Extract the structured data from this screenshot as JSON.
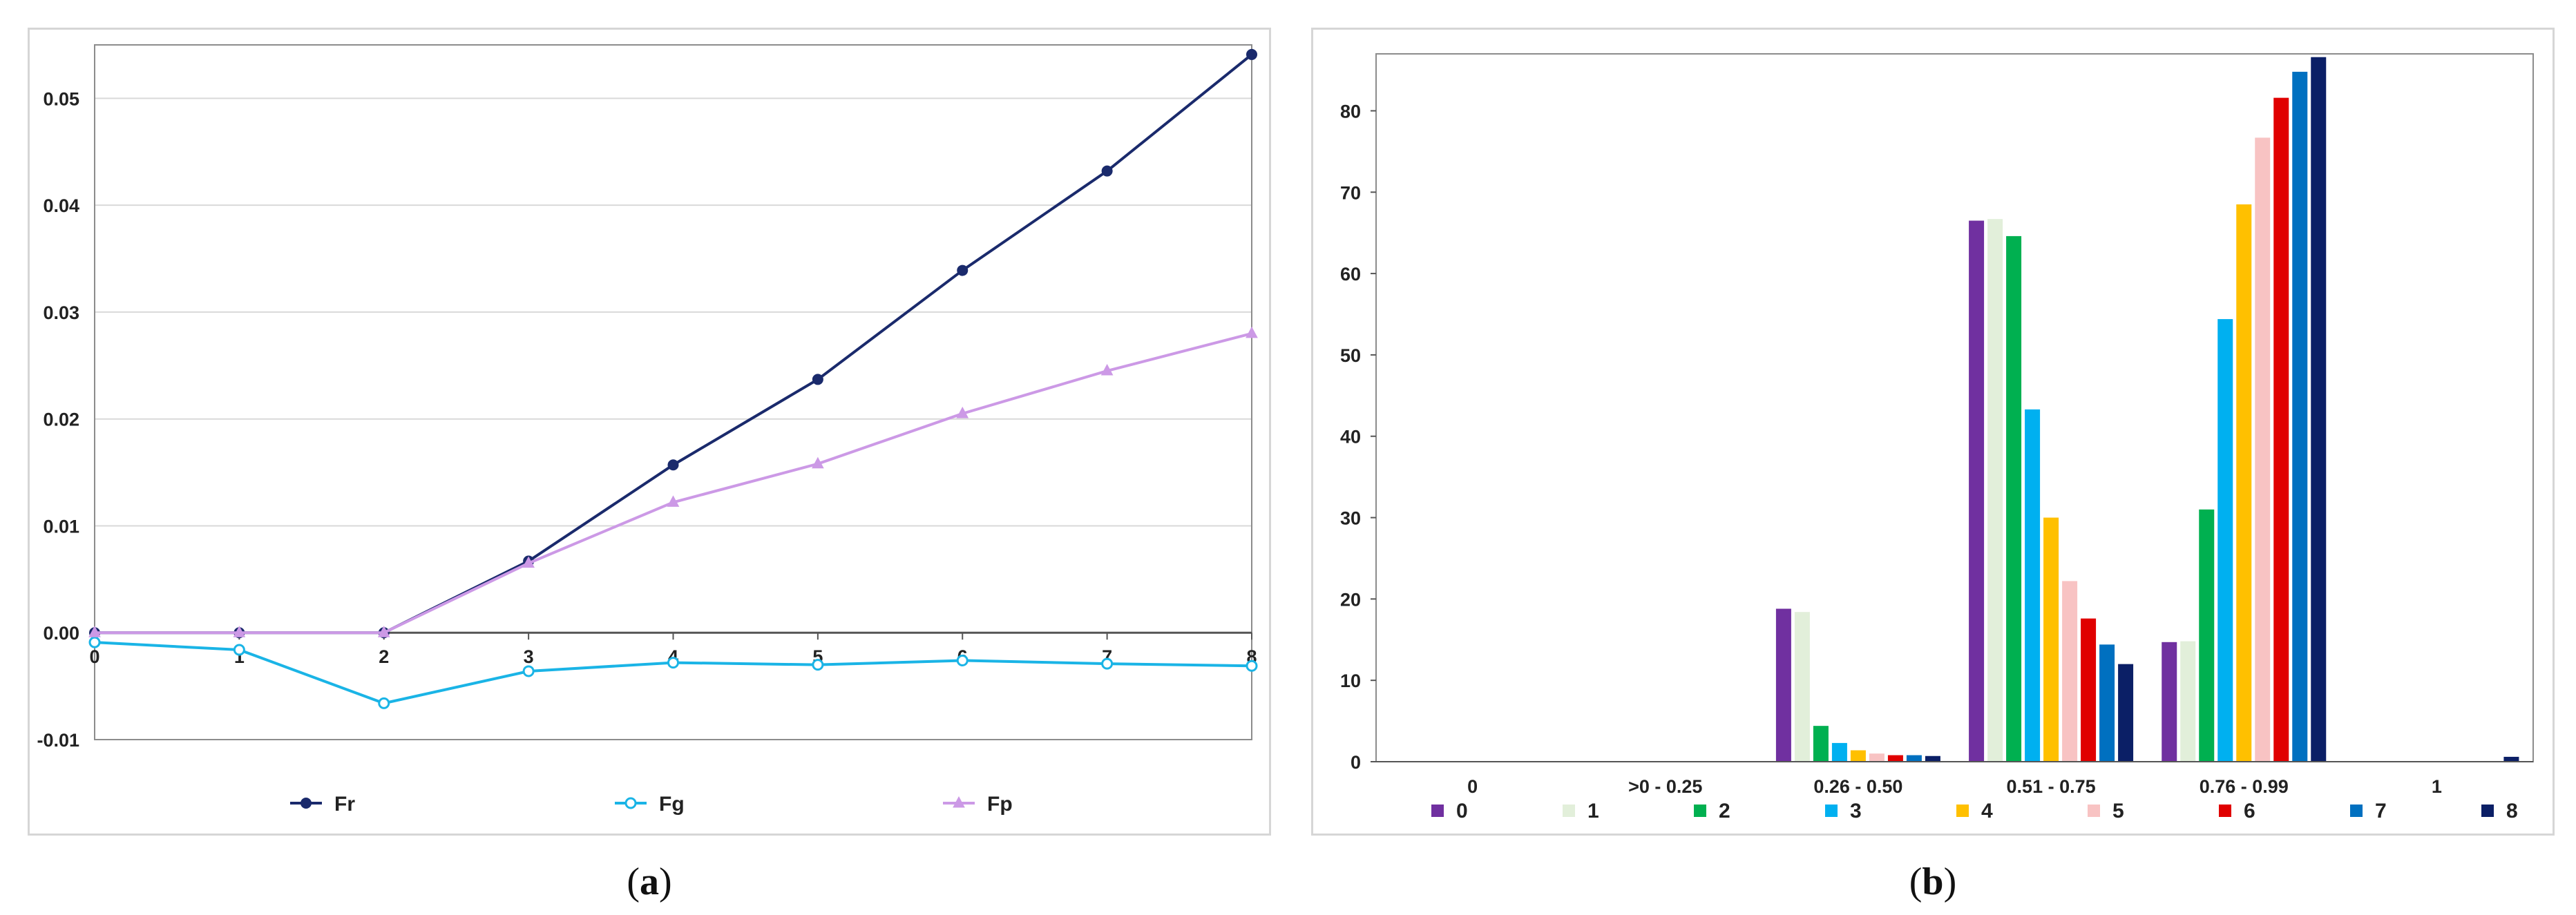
{
  "chart_data": [
    {
      "type": "line",
      "caption": {
        "open": "(",
        "letter": "a",
        "close": ")"
      },
      "x": [
        0,
        1,
        2,
        3,
        4,
        5,
        6,
        7,
        8
      ],
      "x_tick_labels": [
        "0",
        "1",
        "2",
        "3",
        "4",
        "5",
        "6",
        "7",
        "8"
      ],
      "y_tick_labels": [
        "-0.01",
        "0.00",
        "0.01",
        "0.02",
        "0.03",
        "0.04",
        "0.05"
      ],
      "ylim": [
        -0.01,
        0.055
      ],
      "grid": true,
      "legend_position": "bottom",
      "series": [
        {
          "name": "Fr",
          "color": "#1a2a6c",
          "marker": "circle-filled",
          "values": [
            0.0,
            0.0,
            0.0,
            0.0067,
            0.0157,
            0.0237,
            0.0339,
            0.0432,
            0.0541
          ]
        },
        {
          "name": "Fg",
          "color": "#1ab4e6",
          "marker": "circle-open",
          "values": [
            -0.0009,
            -0.0016,
            -0.0066,
            -0.0036,
            -0.0028,
            -0.003,
            -0.0026,
            -0.0029,
            -0.0031
          ]
        },
        {
          "name": "Fp",
          "color": "#cc99e6",
          "marker": "triangle",
          "values": [
            0.0,
            0.0,
            0.0,
            0.0065,
            0.0122,
            0.0158,
            0.0205,
            0.0245,
            0.028
          ]
        }
      ]
    },
    {
      "type": "bar",
      "caption": {
        "open": "(",
        "letter": "b",
        "close": ")"
      },
      "categories": [
        "0",
        ">0 - 0.25",
        "0.26 - 0.50",
        "0.51 - 0.75",
        "0.76 - 0.99",
        "1"
      ],
      "y_tick_labels": [
        "0",
        "10",
        "20",
        "30",
        "40",
        "50",
        "60",
        "70",
        "80"
      ],
      "ylim": [
        0,
        87
      ],
      "grid": false,
      "legend_position": "bottom",
      "series": [
        {
          "name": "0",
          "color": "#7030a0",
          "values": [
            0,
            0,
            18.8,
            66.5,
            14.7,
            0
          ]
        },
        {
          "name": "1",
          "color": "#e2efda",
          "values": [
            0,
            0,
            18.4,
            66.7,
            14.8,
            0
          ]
        },
        {
          "name": "2",
          "color": "#00b050",
          "values": [
            0,
            0,
            4.4,
            64.6,
            31.0,
            0
          ]
        },
        {
          "name": "3",
          "color": "#00b0f0",
          "values": [
            0,
            0,
            2.3,
            43.3,
            54.4,
            0
          ]
        },
        {
          "name": "4",
          "color": "#ffc000",
          "values": [
            0,
            0,
            1.4,
            30.0,
            68.5,
            0
          ]
        },
        {
          "name": "5",
          "color": "#f8c3c3",
          "values": [
            0,
            0,
            1.0,
            22.2,
            76.7,
            0
          ]
        },
        {
          "name": "6",
          "color": "#e00000",
          "values": [
            0,
            0,
            0.8,
            17.6,
            81.6,
            0
          ]
        },
        {
          "name": "7",
          "color": "#0070c0",
          "values": [
            0,
            0,
            0.8,
            14.4,
            84.8,
            0
          ]
        },
        {
          "name": "8",
          "color": "#0b1f66",
          "values": [
            0,
            0,
            0.7,
            12.0,
            86.6,
            0.6
          ]
        }
      ]
    }
  ]
}
